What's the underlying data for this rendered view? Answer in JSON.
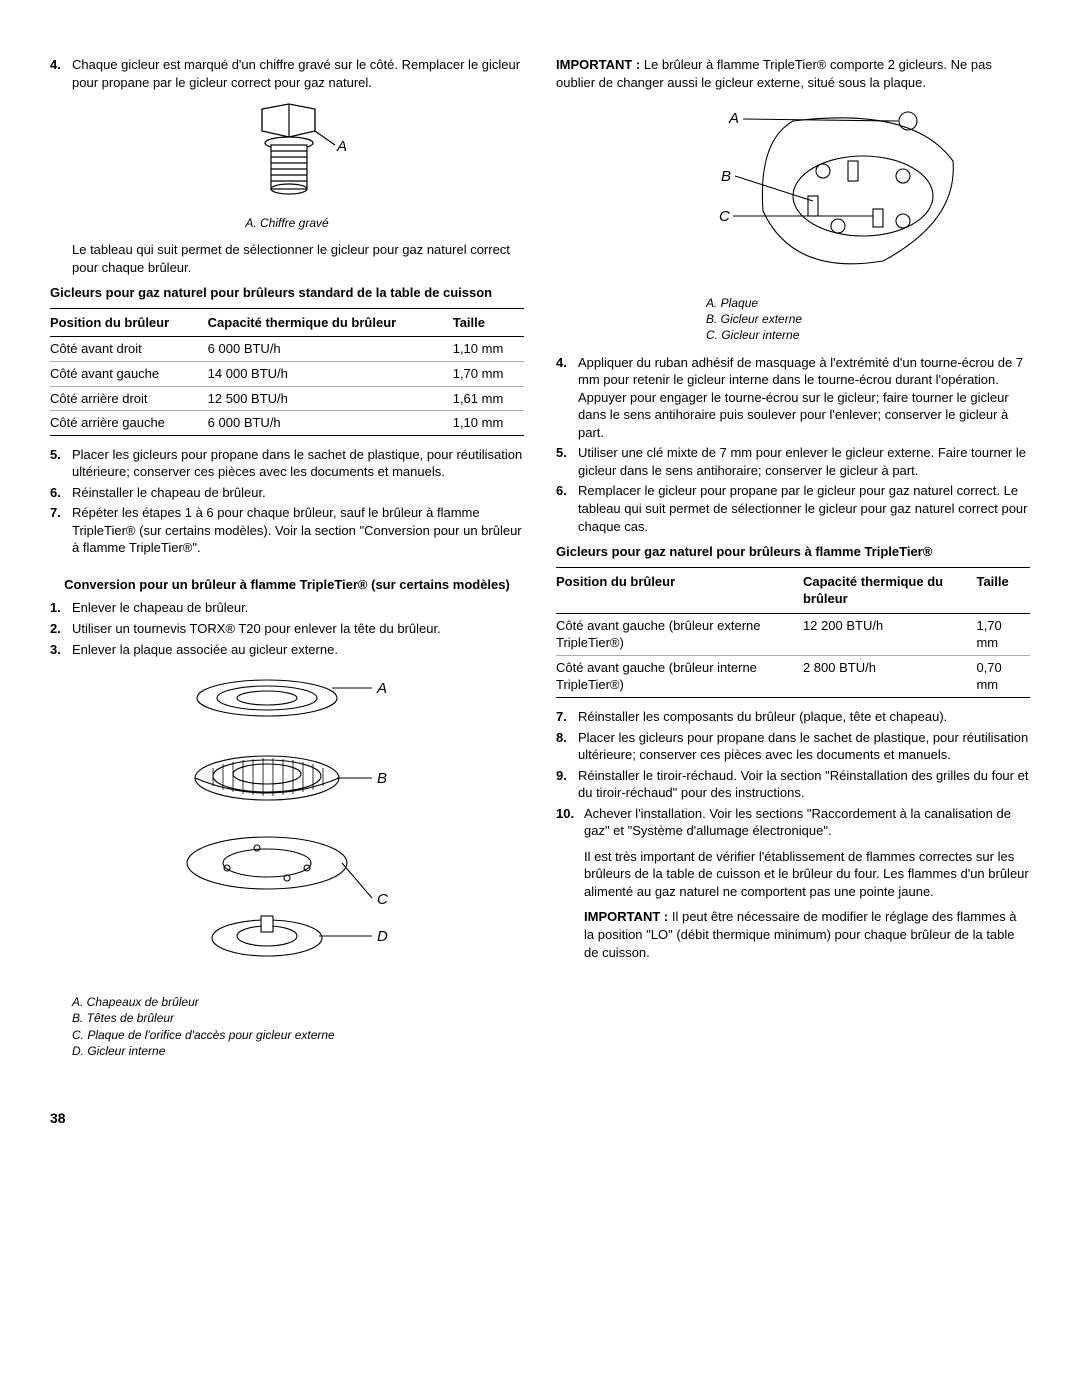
{
  "page_number": "38",
  "colors": {
    "text": "#000000",
    "bg": "#ffffff",
    "rule_thin": "#aaaaaa"
  },
  "left": {
    "step4": {
      "num": "4.",
      "text": "Chaque gicleur est marqué d'un chiffre gravé sur le côté. Remplacer le gicleur pour propane par le gicleur correct pour gaz naturel."
    },
    "fig1": {
      "label_A": "A",
      "caption": "A. Chiffre gravé"
    },
    "after_fig1": "Le tableau qui suit permet de sélectionner le gicleur pour gaz naturel correct pour chaque brûleur.",
    "table1_title": "Gicleurs pour gaz naturel pour brûleurs standard de la table de cuisson",
    "table1": {
      "headers": [
        "Position du brûleur",
        "Capacité thermique du brûleur",
        "Taille"
      ],
      "rows": [
        [
          "Côté avant droit",
          "6 000 BTU/h",
          "1,10 mm"
        ],
        [
          "Côté avant gauche",
          "14 000 BTU/h",
          "1,70 mm"
        ],
        [
          "Côté arrière droit",
          "12 500 BTU/h",
          "1,61 mm"
        ],
        [
          "Côté arrière gauche",
          "6 000 BTU/h",
          "1,10 mm"
        ]
      ]
    },
    "step5": {
      "num": "5.",
      "text": "Placer les gicleurs pour propane dans le sachet de plastique, pour réutilisation ultérieure; conserver ces pièces avec les documents et manuels."
    },
    "step6": {
      "num": "6.",
      "text": "Réinstaller le chapeau de brûleur."
    },
    "step7": {
      "num": "7.",
      "text": "Répéter les étapes 1 à 6 pour chaque brûleur, sauf le brûleur à flamme TripleTier® (sur certains modèles). Voir la section \"Conversion pour un brûleur à flamme TripleTier®\"."
    },
    "subhead": "Conversion pour un brûleur à flamme TripleTier® (sur certains modèles)",
    "sub_step1": {
      "num": "1.",
      "text": "Enlever le chapeau de brûleur."
    },
    "sub_step2": {
      "num": "2.",
      "text": "Utiliser un tournevis TORX® T20 pour enlever la tête du brûleur."
    },
    "sub_step3": {
      "num": "3.",
      "text": "Enlever la plaque associée au gicleur externe."
    },
    "fig2": {
      "A": "A",
      "B": "B",
      "C": "C",
      "D": "D",
      "caption_A": "A. Chapeaux de brûleur",
      "caption_B": "B. Têtes de brûleur",
      "caption_C": "C. Plaque de l'orifice d'accès pour gicleur externe",
      "caption_D": "D. Gicleur interne"
    }
  },
  "right": {
    "important1_label": "IMPORTANT :",
    "important1_text": " Le brûleur à flamme TripleTier® comporte 2 gicleurs. Ne pas oublier de changer aussi le gicleur externe, situé sous la plaque.",
    "fig3": {
      "A": "A",
      "B": "B",
      "C": "C",
      "caption_A": "A. Plaque",
      "caption_B": "B. Gicleur externe",
      "caption_C": "C. Gicleur interne"
    },
    "step4": {
      "num": "4.",
      "text": "Appliquer du ruban adhésif de masquage à l'extrémité d'un tourne-écrou de 7 mm pour retenir le gicleur interne dans le tourne-écrou durant l'opération. Appuyer pour engager le tourne-écrou sur le gicleur; faire tourner le gicleur dans le sens antihoraire puis soulever pour l'enlever; conserver le gicleur à part."
    },
    "step5": {
      "num": "5.",
      "text": "Utiliser une clé mixte de 7 mm pour enlever le gicleur externe. Faire tourner le gicleur dans le sens antihoraire; conserver le gicleur à part."
    },
    "step6": {
      "num": "6.",
      "text": "Remplacer le gicleur pour propane par le gicleur pour gaz naturel correct. Le tableau qui suit permet de sélectionner le gicleur pour gaz naturel correct pour chaque cas."
    },
    "table2_title": "Gicleurs pour gaz naturel pour brûleurs à flamme TripleTier®",
    "table2": {
      "headers": [
        "Position du brûleur",
        "Capacité thermique du brûleur",
        "Taille"
      ],
      "rows": [
        [
          "Côté avant gauche (brûleur externe TripleTier®)",
          "12 200 BTU/h",
          "1,70 mm"
        ],
        [
          "Côté avant gauche (brûleur interne TripleTier®)",
          "2 800 BTU/h",
          "0,70 mm"
        ]
      ]
    },
    "step7": {
      "num": "7.",
      "text": "Réinstaller les composants du brûleur (plaque, tête et chapeau)."
    },
    "step8": {
      "num": "8.",
      "text": "Placer les gicleurs pour propane dans le sachet de plastique, pour réutilisation ultérieure; conserver ces pièces avec les documents et manuels."
    },
    "step9": {
      "num": "9.",
      "text": "Réinstaller le tiroir-réchaud. Voir la section \"Réinstallation des grilles du four et du tiroir-réchaud\" pour des instructions."
    },
    "step10": {
      "num": "10.",
      "text": "Achever l'installation. Voir les sections \"Raccordement à la canalisation de gaz\" et \"Système d'allumage électronique\"."
    },
    "step10_para2": "Il est très important de vérifier l'établissement de flammes correctes sur les brûleurs de la table de cuisson et le brûleur du four. Les flammes d'un brûleur alimenté au gaz naturel ne comportent pas une pointe jaune.",
    "important2_label": "IMPORTANT :",
    "important2_text": " Il peut être nécessaire de modifier le réglage des flammes à la position \"LO\" (débit thermique minimum) pour chaque brûleur de la table de cuisson."
  }
}
